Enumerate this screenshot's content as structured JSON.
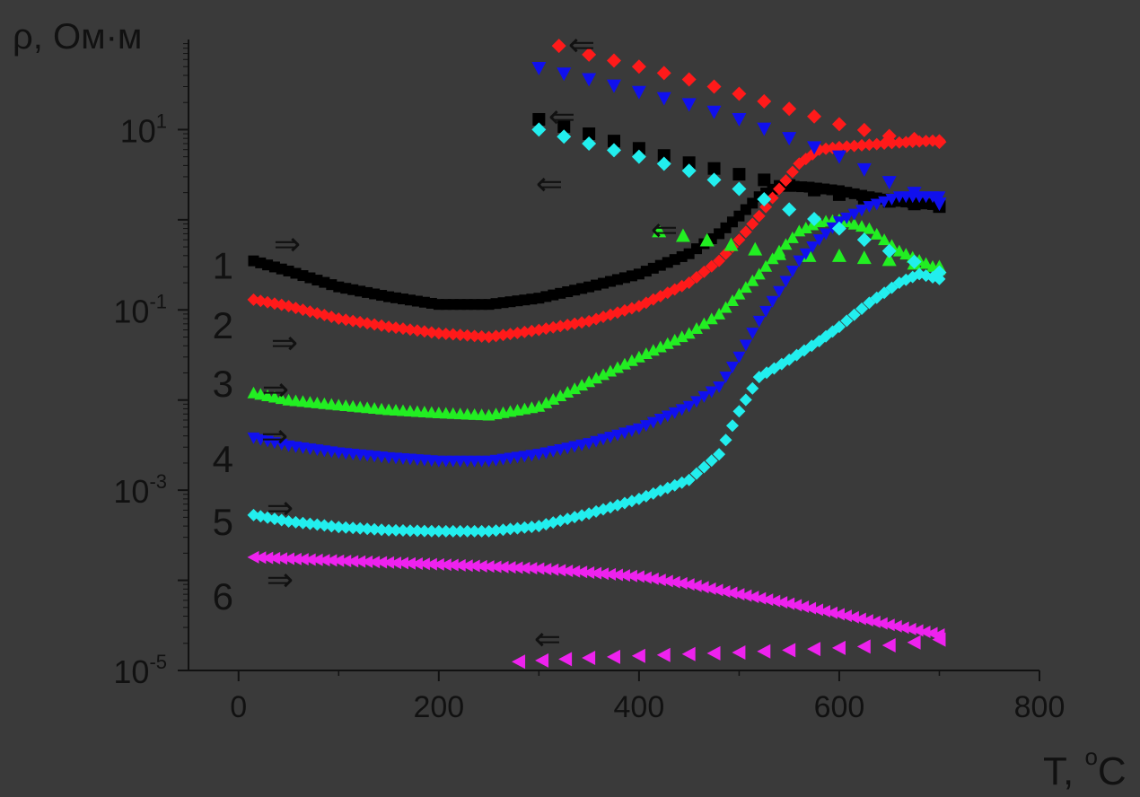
{
  "chart_data": {
    "type": "scatter",
    "ylabel": "ρ, Ом·м",
    "xlabel_main": "T, ",
    "xlabel_sup": "o",
    "xlabel_tail": "C",
    "xlim": [
      -50,
      800
    ],
    "ylim_log10": [
      -5,
      2
    ],
    "y_scale": "log",
    "xticks": [
      0,
      200,
      400,
      600,
      800
    ],
    "yticks": [
      {
        "base": "10",
        "exp": "1",
        "value": 10
      },
      {
        "base": "10",
        "exp": "-1",
        "value": 0.1
      },
      {
        "base": "10",
        "exp": "-3",
        "value": 0.001
      },
      {
        "base": "10",
        "exp": "-5",
        "value": 1e-05
      }
    ],
    "curve_labels": [
      {
        "text": "1",
        "series": 0
      },
      {
        "text": "2",
        "series": 1
      },
      {
        "text": "3",
        "series": 2
      },
      {
        "text": "4",
        "series": 3
      },
      {
        "text": "5",
        "series": 4
      },
      {
        "text": "6",
        "series": 5
      }
    ],
    "arrow_glyphs": {
      "heat": "⇒",
      "cool": "⇐"
    },
    "series": [
      {
        "label": "1",
        "color": "#000000",
        "marker": "square",
        "heating": [
          [
            15,
            0.35
          ],
          [
            50,
            0.27
          ],
          [
            100,
            0.18
          ],
          [
            150,
            0.14
          ],
          [
            200,
            0.115
          ],
          [
            250,
            0.115
          ],
          [
            300,
            0.135
          ],
          [
            350,
            0.18
          ],
          [
            400,
            0.25
          ],
          [
            450,
            0.42
          ],
          [
            480,
            0.7
          ],
          [
            500,
            1.1
          ],
          [
            520,
            1.8
          ],
          [
            540,
            2.4
          ],
          [
            570,
            2.3
          ],
          [
            600,
            2.1
          ],
          [
            630,
            1.8
          ],
          [
            660,
            1.6
          ],
          [
            700,
            1.45
          ]
        ],
        "cooling": [
          [
            300,
            13
          ],
          [
            350,
            9
          ],
          [
            400,
            6.2
          ],
          [
            450,
            4.3
          ],
          [
            500,
            3.2
          ],
          [
            550,
            2.4
          ],
          [
            600,
            1.9
          ],
          [
            650,
            1.6
          ],
          [
            700,
            1.4
          ]
        ]
      },
      {
        "label": "2",
        "color": "#ff1a1a",
        "marker": "diamond",
        "heating": [
          [
            15,
            0.13
          ],
          [
            50,
            0.11
          ],
          [
            100,
            0.08
          ],
          [
            150,
            0.065
          ],
          [
            200,
            0.055
          ],
          [
            250,
            0.05
          ],
          [
            300,
            0.06
          ],
          [
            350,
            0.075
          ],
          [
            400,
            0.11
          ],
          [
            450,
            0.2
          ],
          [
            480,
            0.35
          ],
          [
            500,
            0.6
          ],
          [
            520,
            1.1
          ],
          [
            540,
            2.2
          ],
          [
            560,
            4.2
          ],
          [
            580,
            6
          ],
          [
            600,
            6.4
          ],
          [
            630,
            6.8
          ],
          [
            660,
            7.2
          ],
          [
            700,
            7.6
          ]
        ],
        "cooling": [
          [
            320,
            85
          ],
          [
            350,
            68
          ],
          [
            400,
            50
          ],
          [
            450,
            36
          ],
          [
            500,
            25
          ],
          [
            550,
            17
          ],
          [
            600,
            11.5
          ],
          [
            650,
            8.5
          ],
          [
            700,
            7.3
          ]
        ]
      },
      {
        "label": "3",
        "color": "#22ee22",
        "marker": "triangle-up",
        "heating": [
          [
            15,
            0.012
          ],
          [
            50,
            0.01
          ],
          [
            100,
            0.0088
          ],
          [
            150,
            0.0078
          ],
          [
            200,
            0.0072
          ],
          [
            250,
            0.0068
          ],
          [
            300,
            0.0085
          ],
          [
            350,
            0.016
          ],
          [
            400,
            0.03
          ],
          [
            450,
            0.055
          ],
          [
            480,
            0.09
          ],
          [
            500,
            0.15
          ],
          [
            520,
            0.25
          ],
          [
            540,
            0.45
          ],
          [
            560,
            0.75
          ],
          [
            580,
            0.95
          ],
          [
            600,
            1.0
          ],
          [
            630,
            0.8
          ],
          [
            660,
            0.45
          ],
          [
            700,
            0.28
          ]
        ],
        "cooling": [
          [
            420,
            0.75
          ],
          [
            540,
            0.42
          ],
          [
            570,
            0.4
          ],
          [
            600,
            0.4
          ],
          [
            650,
            0.36
          ],
          [
            700,
            0.3
          ]
        ]
      },
      {
        "label": "4",
        "color": "#1010ee",
        "marker": "triangle-down",
        "heating": [
          [
            15,
            0.0038
          ],
          [
            50,
            0.0031
          ],
          [
            100,
            0.0026
          ],
          [
            150,
            0.0023
          ],
          [
            200,
            0.0021
          ],
          [
            250,
            0.0021
          ],
          [
            300,
            0.0025
          ],
          [
            350,
            0.0033
          ],
          [
            400,
            0.0048
          ],
          [
            450,
            0.0085
          ],
          [
            480,
            0.014
          ],
          [
            500,
            0.03
          ],
          [
            520,
            0.075
          ],
          [
            540,
            0.16
          ],
          [
            560,
            0.35
          ],
          [
            580,
            0.6
          ],
          [
            600,
            0.95
          ],
          [
            630,
            1.4
          ],
          [
            660,
            1.8
          ],
          [
            700,
            1.8
          ]
        ],
        "cooling": [
          [
            300,
            48
          ],
          [
            350,
            36
          ],
          [
            400,
            26
          ],
          [
            450,
            19
          ],
          [
            500,
            13
          ],
          [
            550,
            8
          ],
          [
            600,
            5
          ],
          [
            650,
            2.6
          ],
          [
            700,
            1.5
          ]
        ]
      },
      {
        "label": "5",
        "color": "#22eeee",
        "marker": "diamond",
        "heating": [
          [
            15,
            0.00053
          ],
          [
            50,
            0.00045
          ],
          [
            100,
            0.00039
          ],
          [
            150,
            0.00036
          ],
          [
            200,
            0.00035
          ],
          [
            250,
            0.00035
          ],
          [
            300,
            0.0004
          ],
          [
            350,
            0.00055
          ],
          [
            400,
            0.0008
          ],
          [
            450,
            0.0013
          ],
          [
            480,
            0.0025
          ],
          [
            500,
            0.0075
          ],
          [
            520,
            0.018
          ],
          [
            550,
            0.028
          ],
          [
            580,
            0.045
          ],
          [
            600,
            0.065
          ],
          [
            630,
            0.12
          ],
          [
            660,
            0.2
          ],
          [
            680,
            0.25
          ],
          [
            700,
            0.22
          ]
        ],
        "cooling": [
          [
            300,
            10
          ],
          [
            350,
            7
          ],
          [
            400,
            5
          ],
          [
            450,
            3.5
          ],
          [
            500,
            2.2
          ],
          [
            550,
            1.3
          ],
          [
            600,
            0.8
          ],
          [
            650,
            0.45
          ],
          [
            700,
            0.26
          ]
        ]
      },
      {
        "label": "6",
        "color": "#ee22ee",
        "marker": "triangle-left",
        "heating": [
          [
            15,
            0.00018
          ],
          [
            100,
            0.000165
          ],
          [
            200,
            0.00015
          ],
          [
            300,
            0.000135
          ],
          [
            400,
            0.00011
          ],
          [
            450,
            9e-05
          ],
          [
            500,
            7e-05
          ],
          [
            550,
            5.5e-05
          ],
          [
            600,
            4.2e-05
          ],
          [
            650,
            3.2e-05
          ],
          [
            700,
            2.5e-05
          ]
        ],
        "cooling": [
          [
            280,
            1.25e-05
          ],
          [
            350,
            1.38e-05
          ],
          [
            400,
            1.45e-05
          ],
          [
            450,
            1.52e-05
          ],
          [
            500,
            1.58e-05
          ],
          [
            550,
            1.68e-05
          ],
          [
            600,
            1.78e-05
          ],
          [
            650,
            1.9e-05
          ],
          [
            700,
            2.2e-05
          ]
        ]
      }
    ]
  }
}
